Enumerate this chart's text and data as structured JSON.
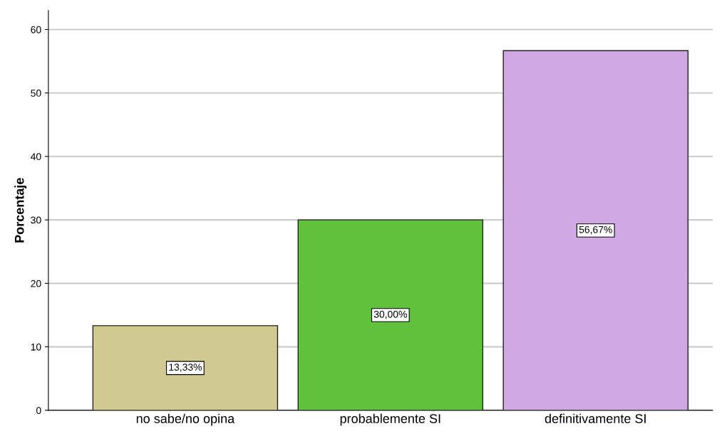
{
  "chart_data": {
    "type": "bar",
    "ylabel": "Porcentaje",
    "categories": [
      "no sabe/no opina",
      "probablemente SI",
      "definitivamente SI"
    ],
    "values": [
      13.33,
      30.0,
      56.67
    ],
    "colors": [
      "#d0c990",
      "#5fc23a",
      "#d0a8e4"
    ],
    "value_labels": [
      "13,33%",
      "30,00%",
      "56,67%"
    ],
    "ylim": [
      0,
      63
    ],
    "yticks": [
      0,
      10,
      20,
      30,
      40,
      50,
      60
    ],
    "grid": "y"
  }
}
